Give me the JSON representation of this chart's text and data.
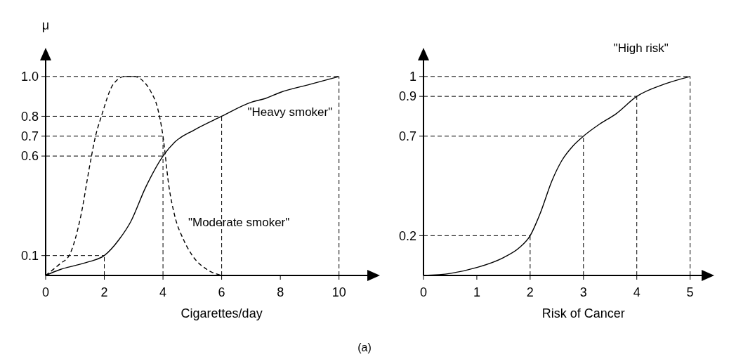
{
  "chart_data": [
    {
      "type": "line",
      "xlabel": "Cigarettes/day",
      "ylabel": "μ",
      "xlim": [
        0,
        11.3
      ],
      "ylim": [
        0,
        1.13
      ],
      "xticks": [
        0,
        2,
        4,
        6,
        8,
        10
      ],
      "yticks": [
        0.1,
        0.6,
        0.7,
        0.8,
        {
          "value": 1,
          "label": "1.0"
        }
      ],
      "grid": false,
      "series": [
        {
          "name": "\"Heavy smoker\"",
          "color": "#000000",
          "line_style": "solid",
          "x": [
            0,
            0.5,
            1,
            1.5,
            2,
            2.5,
            2.9,
            3.4,
            4,
            4.4,
            5.05,
            6,
            7,
            7.5,
            8,
            9,
            10
          ],
          "values": [
            0,
            0.03,
            0.05,
            0.07,
            0.1,
            0.18,
            0.27,
            0.44,
            0.6,
            0.67,
            0.73,
            0.8,
            0.87,
            0.89,
            0.92,
            0.96,
            1
          ]
        },
        {
          "name": "\"Moderate smoker\"",
          "color": "#000000",
          "line_style": "dashed",
          "x": [
            0,
            0.5,
            0.8,
            1.2,
            1.5,
            1.7,
            1.9,
            2.3,
            2.7,
            3,
            3.3,
            3.6,
            3.8,
            4,
            4.2,
            4.4,
            4.7,
            5,
            5.5,
            6
          ],
          "values": [
            0,
            0.06,
            0.1,
            0.3,
            0.55,
            0.7,
            0.8,
            0.96,
            1,
            1,
            0.98,
            0.92,
            0.85,
            0.7,
            0.45,
            0.3,
            0.18,
            0.1,
            0.03,
            0
          ]
        }
      ],
      "ref_lines": [
        {
          "axis": "y",
          "value": 0.1,
          "color": "#000000",
          "line_style": "dashed"
        },
        {
          "axis": "y",
          "value": 0.6,
          "color": "#000000",
          "line_style": "dashed"
        },
        {
          "axis": "y",
          "value": 0.7,
          "color": "#000000",
          "line_style": "dashed"
        },
        {
          "axis": "y",
          "value": 0.8,
          "color": "#000000",
          "line_style": "dashed"
        },
        {
          "axis": "y",
          "value": 1,
          "color": "#000000",
          "line_style": "dashed"
        },
        {
          "axis": "x",
          "value": 2,
          "color": "#000000",
          "line_style": "dashed"
        },
        {
          "axis": "x",
          "value": 4,
          "color": "#000000",
          "line_style": "dashed"
        },
        {
          "axis": "x",
          "value": 6,
          "color": "#000000",
          "line_style": "dashed"
        },
        {
          "axis": "x",
          "value": 10,
          "color": "#000000",
          "line_style": "dashed"
        }
      ],
      "annotations": [
        "(a)"
      ]
    },
    {
      "type": "line",
      "xlabel": "Risk of Cancer",
      "xlim": [
        0,
        5.4
      ],
      "ylim": [
        0,
        1.13
      ],
      "xticks": [
        0,
        1,
        2,
        3,
        4,
        5
      ],
      "yticks": [
        0.2,
        0.7,
        0.9,
        1
      ],
      "grid": false,
      "series": [
        {
          "name": "\"High risk\"",
          "color": "#000000",
          "line_style": "solid",
          "x": [
            0,
            0.5,
            1,
            1.5,
            1.8,
            2,
            2.2,
            2.4,
            2.6,
            2.8,
            3,
            3.3,
            3.6,
            4,
            4.5,
            5
          ],
          "values": [
            0,
            0.01,
            0.04,
            0.09,
            0.14,
            0.2,
            0.32,
            0.47,
            0.58,
            0.65,
            0.7,
            0.76,
            0.81,
            0.9,
            0.96,
            1
          ]
        }
      ],
      "ref_lines": [
        {
          "axis": "y",
          "value": 0.2,
          "color": "#000000",
          "line_style": "dashed"
        },
        {
          "axis": "y",
          "value": 0.7,
          "color": "#000000",
          "line_style": "dashed"
        },
        {
          "axis": "y",
          "value": 0.9,
          "color": "#000000",
          "line_style": "dashed"
        },
        {
          "axis": "y",
          "value": 1,
          "color": "#000000",
          "line_style": "dashed"
        },
        {
          "axis": "x",
          "value": 2,
          "color": "#000000",
          "line_style": "dashed"
        },
        {
          "axis": "x",
          "value": 3,
          "color": "#000000",
          "line_style": "dashed"
        },
        {
          "axis": "x",
          "value": 4,
          "color": "#000000",
          "line_style": "dashed"
        },
        {
          "axis": "x",
          "value": 5,
          "color": "#000000",
          "line_style": "dashed"
        }
      ]
    }
  ]
}
